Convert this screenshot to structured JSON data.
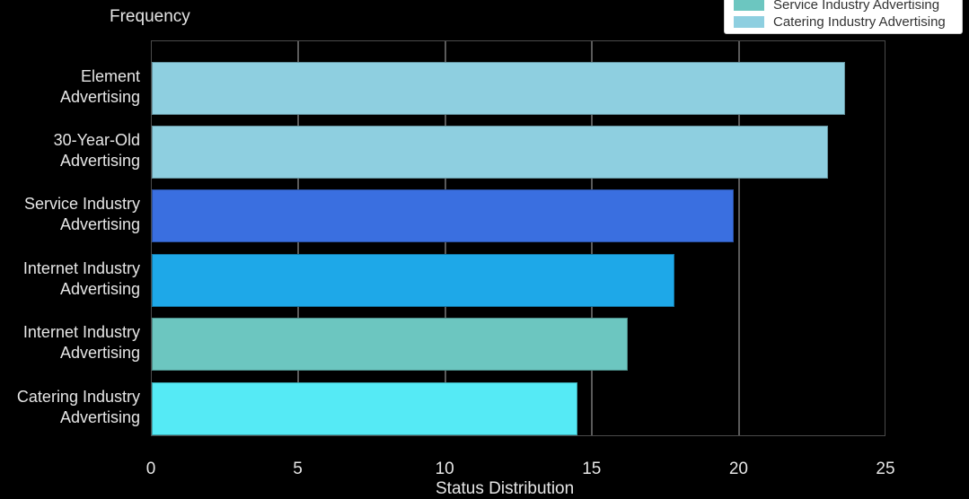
{
  "chart_data": {
    "type": "bar",
    "orientation": "horizontal",
    "title": "",
    "ylabel": "Frequency",
    "xlabel": "Status Distribution",
    "xlim": [
      0,
      25
    ],
    "xticks": [
      "0",
      "5",
      "10",
      "15",
      "20",
      "25"
    ],
    "grid": true,
    "categories": [
      "Element Advertising",
      "30-Year-Old Advertising",
      "Service Industry Advertising",
      "Internet Industry Advertising",
      "Internet Industry Advertising",
      "Catering Industry Advertising"
    ],
    "category_lines": [
      [
        "Element",
        "Advertising"
      ],
      [
        "30-Year-Old",
        "Advertising"
      ],
      [
        "Service Industry",
        "Advertising"
      ],
      [
        "Internet Industry",
        "Advertising"
      ],
      [
        "Internet Industry",
        "Advertising"
      ],
      [
        "Catering Industry",
        "Advertising"
      ]
    ],
    "values": [
      23.6,
      23.0,
      19.8,
      17.8,
      16.2,
      14.5
    ],
    "colors": [
      "#8ecfe0",
      "#8ecfe0",
      "#3a6fe0",
      "#1ea8e8",
      "#6cc6c0",
      "#55eaf5"
    ],
    "legend": {
      "position": "top-right",
      "entries": [
        {
          "label": "Service Industry Advertising",
          "color": "#6cc6c0"
        },
        {
          "label": "Catering Industry Advertising",
          "color": "#8ecfe0"
        }
      ]
    }
  }
}
